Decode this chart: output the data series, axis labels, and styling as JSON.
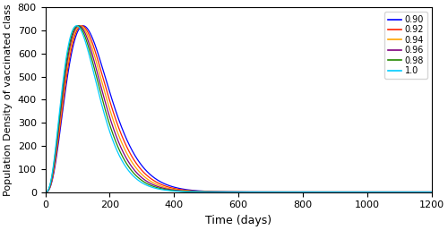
{
  "title": "",
  "xlabel": "Time (days)",
  "ylabel": "Population Density of vaccinated class",
  "xlim": [
    0,
    1200
  ],
  "ylim": [
    0,
    800
  ],
  "xticks": [
    0,
    200,
    400,
    600,
    800,
    1000,
    1200
  ],
  "yticks": [
    0,
    100,
    200,
    300,
    400,
    500,
    600,
    700,
    800
  ],
  "legend_labels": [
    "0.90",
    "0.92",
    "0.94",
    "0.96",
    "0.98",
    "1.0"
  ],
  "legend_colors": [
    "#0000ff",
    "#ff2200",
    "#ffa500",
    "#800080",
    "#228800",
    "#00ccff"
  ],
  "figsize": [
    5.0,
    2.57
  ],
  "dpi": 100
}
